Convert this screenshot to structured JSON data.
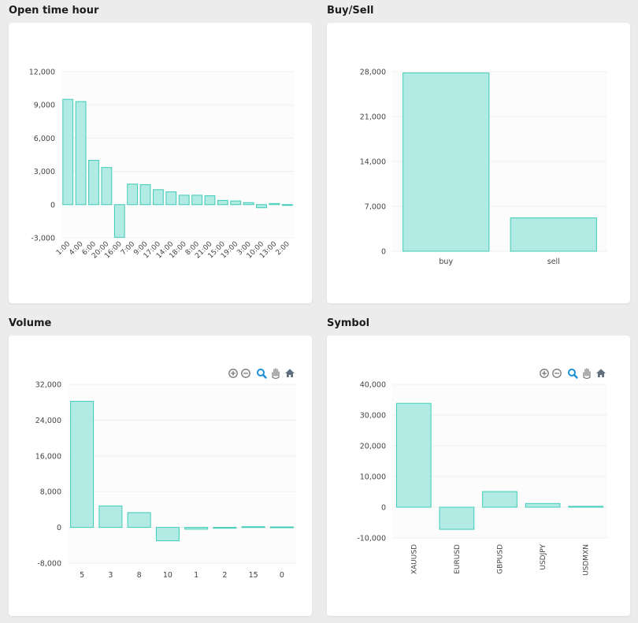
{
  "panels": {
    "open_time_hour": {
      "title": "Open time hour"
    },
    "buy_sell": {
      "title": "Buy/Sell"
    },
    "volume": {
      "title": "Volume"
    },
    "symbol": {
      "title": "Symbol"
    }
  },
  "colors": {
    "bar_fill": "#b2ebe4",
    "bar_stroke": "#3fcbb8",
    "grid": "#efefef",
    "tick_text": "#444444",
    "icon": "#777777",
    "icon_active": "#1a8fd6"
  },
  "toolbar_icons": [
    "zoom-in-icon",
    "zoom-out-icon",
    "selection-zoom-icon",
    "pan-hand-icon",
    "reset-home-icon"
  ],
  "chart_data": [
    {
      "id": "open_time_hour",
      "type": "bar",
      "categories": [
        "1:00",
        "4:00",
        "6:00",
        "20:00",
        "16:00",
        "7:00",
        "9:00",
        "17:00",
        "14:00",
        "18:00",
        "8:00",
        "21:00",
        "15:00",
        "19:00",
        "3:00",
        "10:00",
        "13:00",
        "2:00"
      ],
      "values": [
        9500,
        9300,
        4000,
        3350,
        -2950,
        1850,
        1800,
        1350,
        1150,
        850,
        850,
        800,
        380,
        330,
        180,
        -280,
        100,
        -60
      ],
      "yticks": [
        "12,000",
        "9,000",
        "6,000",
        "3,000",
        "0",
        "-3,000"
      ],
      "ylim": [
        -3000,
        12000
      ],
      "grid": true
    },
    {
      "id": "buy_sell",
      "type": "bar",
      "categories": [
        "buy",
        "sell"
      ],
      "values": [
        27800,
        5200
      ],
      "yticks": [
        "28,000",
        "21,000",
        "14,000",
        "7,000",
        "0"
      ],
      "ylim": [
        0,
        28000
      ],
      "grid": true
    },
    {
      "id": "volume",
      "type": "bar",
      "categories": [
        "5",
        "3",
        "8",
        "10",
        "1",
        "2",
        "15",
        "0"
      ],
      "values": [
        28200,
        4800,
        3300,
        -3000,
        -400,
        -200,
        150,
        100
      ],
      "yticks": [
        "32,000",
        "24,000",
        "16,000",
        "8,000",
        "0",
        "-8,000"
      ],
      "ylim": [
        -8000,
        32000
      ],
      "grid": true
    },
    {
      "id": "symbol",
      "type": "bar",
      "categories": [
        "XAUUSD",
        "EURUSD",
        "GBPUSD",
        "USDJPY",
        "USDMXN"
      ],
      "values": [
        33800,
        -7200,
        5100,
        1200,
        300
      ],
      "yticks": [
        "40,000",
        "30,000",
        "20,000",
        "10,000",
        "0",
        "-10,000"
      ],
      "ylim": [
        -10000,
        40000
      ],
      "grid": true
    }
  ]
}
